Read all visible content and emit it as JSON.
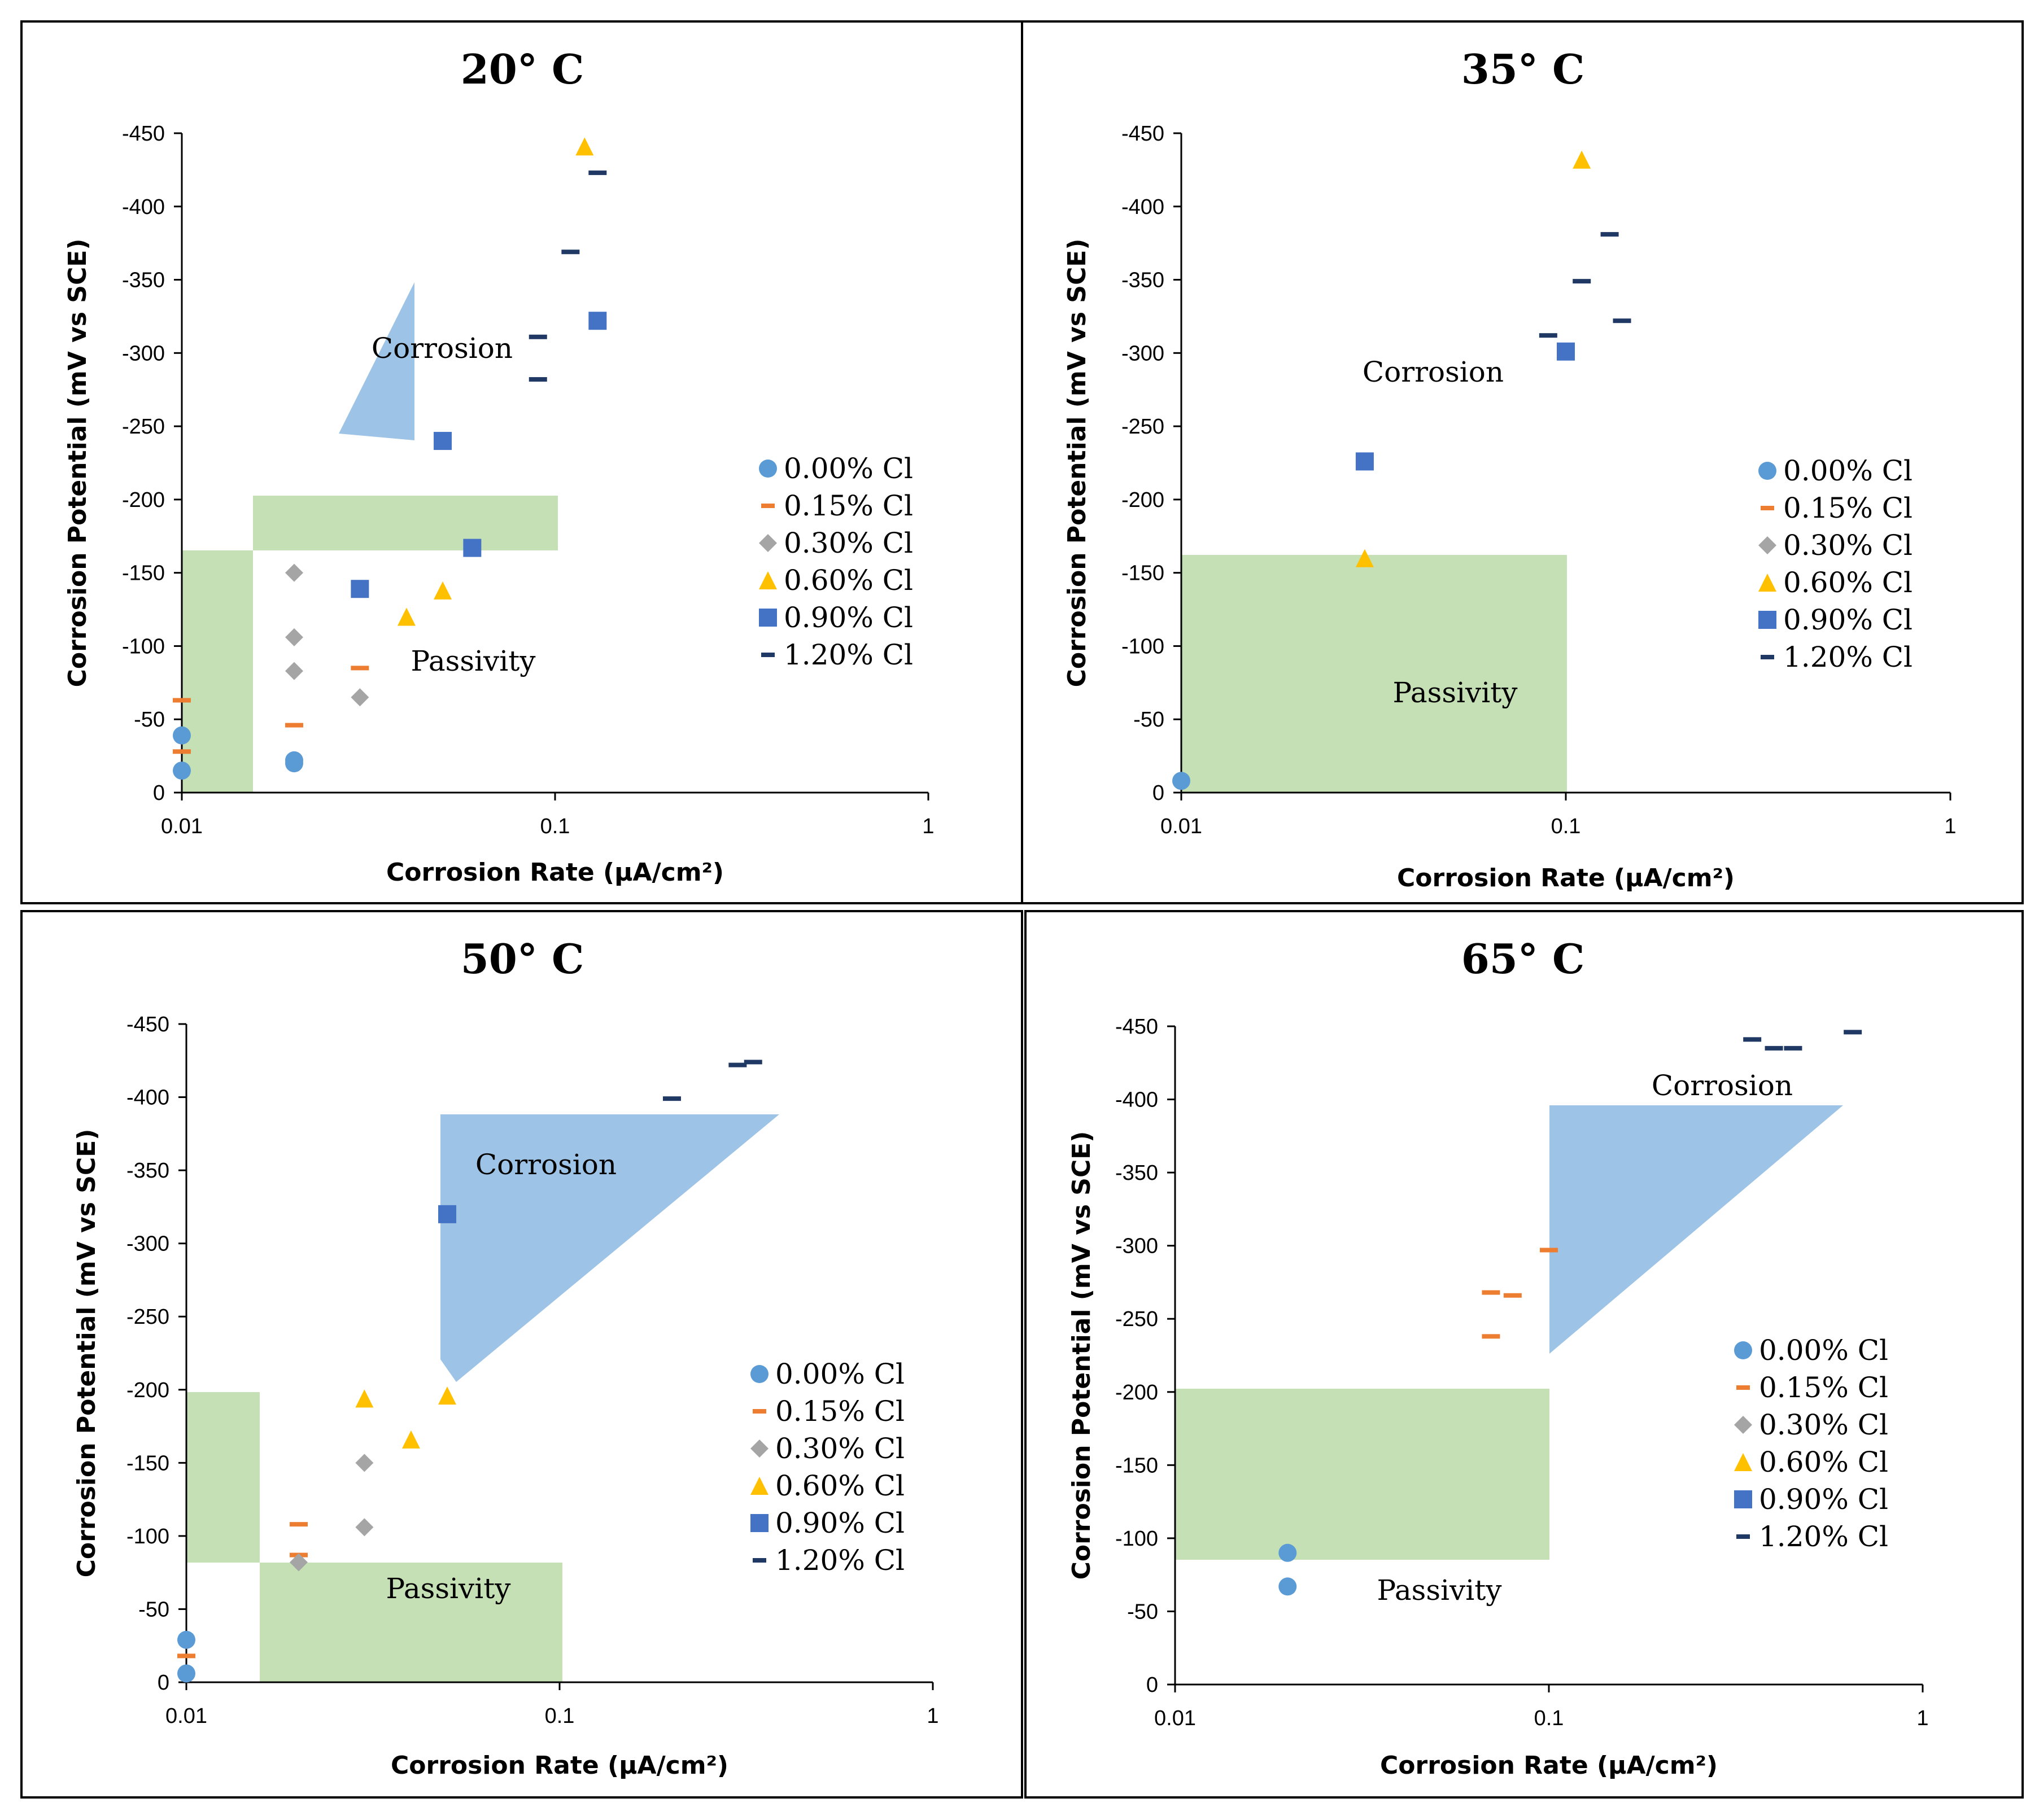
{
  "colors": {
    "0.00% Cl": "#5b9bd5",
    "0.15% Cl": "#ed7d31",
    "0.30% Cl": "#a5a5a5",
    "0.60% Cl": "#ffc000",
    "0.90% Cl": "#4472c4",
    "1.20% Cl": "#1f3864",
    "corrosion_region": "#9dc3e6",
    "passivity_region": "#c5e0b4"
  },
  "chart_data": [
    {
      "type": "scatter",
      "title": "20° C",
      "xlabel": "Corrosion Rate (μA/cm²)",
      "ylabel": "Corrosion Potential (mV vs SCE)",
      "xscale": "log",
      "xlim": [
        0.01,
        1
      ],
      "ylim": [
        0,
        -450
      ],
      "xticks": [
        "0.01",
        "0.1",
        "1"
      ],
      "yticks": [
        "-450",
        "-400",
        "-350",
        "-300",
        "-250",
        "-200",
        "-150",
        "-100",
        "-50",
        "0"
      ],
      "legend_position": "right",
      "region_labels": {
        "corrosion": "Corrosion",
        "passivity": "Passivity"
      },
      "series": [
        {
          "name": "0.00% Cl",
          "marker": "circle",
          "points": [
            [
              0.01,
              -15
            ],
            [
              0.01,
              -39
            ],
            [
              0.02,
              -20
            ],
            [
              0.02,
              -22
            ]
          ]
        },
        {
          "name": "0.15% Cl",
          "marker": "dash",
          "points": [
            [
              0.01,
              -63
            ],
            [
              0.02,
              -46
            ],
            [
              0.03,
              -85
            ],
            [
              0.01,
              -28
            ]
          ]
        },
        {
          "name": "0.30% Cl",
          "marker": "diamond",
          "points": [
            [
              0.02,
              -150
            ],
            [
              0.02,
              -106
            ],
            [
              0.02,
              -83
            ],
            [
              0.03,
              -65
            ]
          ]
        },
        {
          "name": "0.60% Cl",
          "marker": "triangle",
          "points": [
            [
              0.04,
              -120
            ],
            [
              0.05,
              -138
            ],
            [
              0.12,
              -441
            ]
          ]
        },
        {
          "name": "0.90% Cl",
          "marker": "square",
          "points": [
            [
              0.03,
              -139
            ],
            [
              0.05,
              -240
            ],
            [
              0.06,
              -167
            ],
            [
              0.13,
              -322
            ]
          ]
        },
        {
          "name": "1.20% Cl",
          "marker": "dash",
          "points": [
            [
              0.13,
              -423
            ],
            [
              0.11,
              -369
            ],
            [
              0.09,
              -311
            ],
            [
              0.09,
              -282
            ]
          ]
        }
      ]
    },
    {
      "type": "scatter",
      "title": "35° C",
      "xlabel": "Corrosion Rate (μA/cm²)",
      "ylabel": "Corrosion Potential (mV vs SCE)",
      "xscale": "log",
      "xlim": [
        0.01,
        1
      ],
      "ylim": [
        0,
        -450
      ],
      "xticks": [
        "0.01",
        "0.1",
        "1"
      ],
      "yticks": [
        "-450",
        "-400",
        "-350",
        "-300",
        "-250",
        "-200",
        "-150",
        "-100",
        "-50",
        "0"
      ],
      "legend_position": "right",
      "region_labels": {
        "corrosion": "Corrosion",
        "passivity": "Passivity"
      },
      "series": [
        {
          "name": "0.00% Cl",
          "marker": "circle",
          "points": [
            [
              0.01,
              -8
            ]
          ]
        },
        {
          "name": "0.15% Cl",
          "marker": "dash",
          "points": []
        },
        {
          "name": "0.30% Cl",
          "marker": "diamond",
          "points": []
        },
        {
          "name": "0.60% Cl",
          "marker": "triangle",
          "points": [
            [
              0.03,
              -160
            ],
            [
              0.11,
              -432
            ]
          ]
        },
        {
          "name": "0.90% Cl",
          "marker": "square",
          "points": [
            [
              0.03,
              -226
            ],
            [
              0.1,
              -301
            ]
          ]
        },
        {
          "name": "1.20% Cl",
          "marker": "dash",
          "points": [
            [
              0.13,
              -381
            ],
            [
              0.11,
              -349
            ],
            [
              0.09,
              -312
            ],
            [
              0.14,
              -322
            ]
          ]
        }
      ]
    },
    {
      "type": "scatter",
      "title": "50° C",
      "xlabel": "Corrosion Rate (μA/cm²)",
      "ylabel": "Corrosion Potential (mV vs SCE)",
      "xscale": "log",
      "xlim": [
        0.01,
        1
      ],
      "ylim": [
        0,
        -450
      ],
      "xticks": [
        "0.01",
        "0.1",
        "1"
      ],
      "yticks": [
        "-450",
        "-400",
        "-350",
        "-300",
        "-250",
        "-200",
        "-150",
        "-100",
        "-50",
        "0"
      ],
      "legend_position": "right",
      "region_labels": {
        "corrosion": "Corrosion",
        "passivity": "Passivity"
      },
      "series": [
        {
          "name": "0.00% Cl",
          "marker": "circle",
          "points": [
            [
              0.01,
              -29
            ],
            [
              0.01,
              -6
            ]
          ]
        },
        {
          "name": "0.15% Cl",
          "marker": "dash",
          "points": [
            [
              0.02,
              -108
            ],
            [
              0.02,
              -87
            ],
            [
              0.01,
              -18
            ]
          ]
        },
        {
          "name": "0.30% Cl",
          "marker": "diamond",
          "points": [
            [
              0.03,
              -150
            ],
            [
              0.03,
              -106
            ],
            [
              0.02,
              -82
            ]
          ]
        },
        {
          "name": "0.60% Cl",
          "marker": "triangle",
          "points": [
            [
              0.03,
              -194
            ],
            [
              0.04,
              -166
            ],
            [
              0.05,
              -196
            ]
          ]
        },
        {
          "name": "0.90% Cl",
          "marker": "square",
          "points": [
            [
              0.05,
              -320
            ]
          ]
        },
        {
          "name": "1.20% Cl",
          "marker": "dash",
          "points": [
            [
              0.2,
              -399
            ],
            [
              0.3,
              -422
            ],
            [
              0.33,
              -424
            ]
          ]
        }
      ]
    },
    {
      "type": "scatter",
      "title": "65° C",
      "xlabel": "Corrosion Rate (μA/cm²)",
      "ylabel": "Corrosion Potential (mV vs SCE)",
      "xscale": "log",
      "xlim": [
        0.01,
        1
      ],
      "ylim": [
        0,
        -450
      ],
      "xticks": [
        "0.01",
        "0.1",
        "1"
      ],
      "yticks": [
        "-450",
        "-400",
        "-350",
        "-300",
        "-250",
        "-200",
        "-150",
        "-100",
        "-50",
        "0"
      ],
      "legend_position": "right",
      "region_labels": {
        "corrosion": "Corrosion",
        "passivity": "Passivity"
      },
      "series": [
        {
          "name": "0.00% Cl",
          "marker": "circle",
          "points": [
            [
              0.02,
              -67
            ],
            [
              0.02,
              -90
            ]
          ]
        },
        {
          "name": "0.15% Cl",
          "marker": "dash",
          "points": [
            [
              0.07,
              -268
            ],
            [
              0.08,
              -266
            ],
            [
              0.07,
              -238
            ],
            [
              0.1,
              -297
            ]
          ]
        },
        {
          "name": "0.30% Cl",
          "marker": "diamond",
          "points": []
        },
        {
          "name": "0.60% Cl",
          "marker": "triangle",
          "points": []
        },
        {
          "name": "0.90% Cl",
          "marker": "square",
          "points": []
        },
        {
          "name": "1.20% Cl",
          "marker": "dash",
          "points": [
            [
              0.35,
              -441
            ],
            [
              0.4,
              -435
            ],
            [
              0.45,
              -435
            ],
            [
              0.65,
              -446
            ]
          ]
        }
      ]
    }
  ]
}
